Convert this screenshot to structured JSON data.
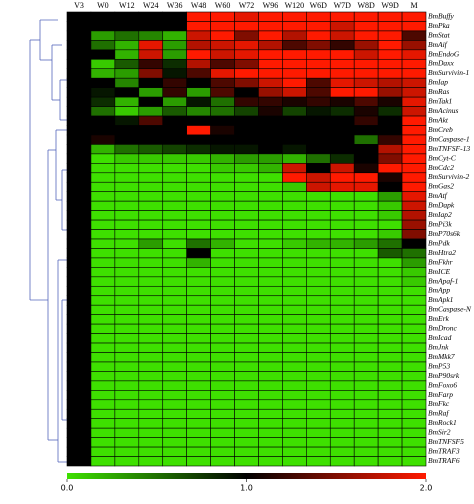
{
  "chart_data": {
    "type": "heatmap",
    "columns": [
      "V3",
      "W0",
      "W12",
      "W24",
      "W36",
      "W48",
      "W60",
      "W72",
      "W96",
      "W120",
      "W6D",
      "W7D",
      "W8D",
      "W9D",
      "M"
    ],
    "rows": [
      "BmBuffy",
      "BmPka",
      "BmStat",
      "BmAif",
      "BmEndoG",
      "BmDaxx",
      "BmSurvivin-1",
      "BmIap",
      "BmRas",
      "BmTak1",
      "BmAcinus",
      "BmAkt",
      "BmCreb",
      "BmCaspase-1",
      "BmTNFSF-13",
      "BmCyt-C",
      "BmCdc2",
      "BmSurvivin-2",
      "BmGas2",
      "BmAtf",
      "BmDapk",
      "BmIap2",
      "BmPi3k",
      "BmP70s6k",
      "BmPdk",
      "BmHtra2",
      "BmFkhr",
      "BmICE",
      "BmApaf-1",
      "BmApp",
      "BmApk1",
      "BmCaspase-N",
      "BmErk",
      "BmDronc",
      "BmIcad",
      "BmJnk",
      "BmMkk7",
      "BmP53",
      "BmP90srk",
      "BmFoxo6",
      "BmFarp",
      "BmFkc",
      "BmRaf",
      "BmRock1",
      "BmSir2",
      "BmTNFSF5",
      "BmTRAF3",
      "BmTRAF6"
    ],
    "values": [
      [
        1,
        1,
        1,
        1,
        1,
        2,
        2,
        1.9,
        2,
        2,
        2,
        2,
        2,
        2,
        2
      ],
      [
        1,
        1,
        1,
        1,
        1,
        2,
        2,
        2,
        2,
        2,
        2,
        1.8,
        2,
        2,
        2
      ],
      [
        1,
        0.3,
        0.5,
        0.4,
        0.2,
        1.8,
        2,
        1.5,
        2,
        1.7,
        2,
        1.8,
        2,
        2,
        1.3
      ],
      [
        1,
        0.5,
        0.2,
        1.9,
        0.3,
        1.7,
        1.8,
        1.9,
        1.7,
        1.3,
        1.5,
        1.2,
        1.6,
        2,
        1.6
      ],
      [
        1,
        1,
        0.2,
        1.8,
        0.3,
        2,
        1.8,
        1.9,
        2,
        2,
        2,
        2,
        1.8,
        2,
        1.9
      ],
      [
        1,
        0.1,
        0.6,
        1.2,
        0.8,
        1.7,
        1.3,
        1.5,
        2,
        2,
        2,
        2,
        2,
        2,
        2
      ],
      [
        1,
        0.2,
        0.3,
        1.5,
        0.9,
        1.3,
        1.9,
        2,
        2,
        2,
        2,
        2,
        2,
        2,
        2
      ],
      [
        1,
        1,
        0.4,
        1,
        1.2,
        1,
        1.3,
        1.5,
        1.8,
        2,
        1.3,
        1.9,
        1.8,
        1.7,
        1.8
      ],
      [
        1,
        0.9,
        1,
        0.3,
        1.2,
        0.3,
        1.3,
        1,
        1.6,
        1.8,
        1.3,
        2,
        2,
        1.6,
        1.8
      ],
      [
        1,
        0.8,
        0.2,
        1,
        0.3,
        0.9,
        0.5,
        1.2,
        1.2,
        1.1,
        1.2,
        1.1,
        1.3,
        1.1,
        1.9
      ],
      [
        1,
        0.5,
        0.1,
        0.3,
        0.6,
        0.4,
        0.5,
        0.7,
        1.1,
        0.7,
        0.9,
        0.8,
        1.1,
        0.8,
        1.8
      ],
      [
        1,
        1,
        0.9,
        1.3,
        1,
        1,
        1,
        1,
        1,
        1,
        1,
        1,
        1.2,
        1,
        2
      ],
      [
        1,
        1,
        1,
        1,
        1,
        2,
        1.1,
        1,
        1,
        1,
        1,
        1,
        1,
        1,
        2
      ],
      [
        1,
        1.1,
        1,
        1,
        1,
        1,
        1,
        1,
        1,
        1,
        1,
        1,
        0.5,
        1.2,
        2
      ],
      [
        1,
        0.2,
        0.5,
        0.6,
        0.7,
        0.8,
        0.9,
        0.9,
        1,
        0.9,
        1,
        1,
        1,
        1.7,
        2
      ],
      [
        1,
        0,
        0.1,
        0.1,
        0.1,
        0.1,
        0.2,
        0.3,
        0.3,
        0.2,
        0.5,
        0.8,
        1,
        1.5,
        2
      ],
      [
        1,
        0,
        0,
        0,
        0,
        0,
        0.1,
        0.1,
        0.2,
        1.8,
        1,
        1.8,
        1.1,
        2,
        2
      ],
      [
        1,
        0,
        0,
        0,
        0,
        0,
        0,
        0,
        0,
        2,
        1.8,
        2,
        2,
        1.1,
        2
      ],
      [
        1,
        0,
        0,
        0,
        0,
        0,
        0,
        0,
        0,
        0.1,
        1.8,
        1.9,
        1.9,
        1,
        2
      ],
      [
        1,
        0,
        0,
        0,
        0,
        0,
        0,
        0,
        0,
        0,
        0,
        0,
        0,
        0.3,
        1.9
      ],
      [
        1,
        0,
        0,
        0,
        0,
        0,
        0,
        0,
        0,
        0,
        0,
        0,
        0,
        0.1,
        1.8
      ],
      [
        1,
        0,
        0,
        0,
        0,
        0,
        0,
        0,
        0,
        0,
        0,
        0,
        0,
        0.1,
        1.7
      ],
      [
        1,
        0,
        0,
        0,
        0,
        0,
        0,
        0,
        0,
        0,
        0,
        0,
        0,
        0,
        1.6
      ],
      [
        1,
        0,
        0,
        0,
        0,
        0,
        0,
        0,
        0,
        0,
        0,
        0,
        0,
        0.1,
        1.5
      ],
      [
        1,
        0,
        0,
        0.3,
        0,
        0.5,
        0.2,
        0,
        0,
        0.1,
        0.2,
        0.2,
        0.3,
        0.5,
        1
      ],
      [
        1,
        0,
        0,
        0,
        0,
        1,
        0,
        0,
        0,
        0,
        0,
        0,
        0,
        0.6,
        0.5
      ],
      [
        1,
        0,
        0,
        0,
        0,
        0.2,
        0,
        0,
        0,
        0,
        0,
        0,
        0,
        0,
        0.3
      ],
      [
        1,
        0,
        0,
        0,
        0,
        0,
        0,
        0,
        0,
        0,
        0,
        0,
        0,
        0,
        0.1
      ],
      [
        1,
        0,
        0,
        0,
        0,
        0,
        0,
        0,
        0,
        0,
        0,
        0,
        0,
        0,
        0.1
      ],
      [
        1,
        0,
        0,
        0,
        0,
        0,
        0,
        0,
        0,
        0,
        0,
        0,
        0,
        0,
        0
      ],
      [
        1,
        0,
        0,
        0,
        0,
        0,
        0,
        0,
        0,
        0,
        0,
        0,
        0,
        0,
        0
      ],
      [
        1,
        0,
        0,
        0,
        0,
        0,
        0,
        0,
        0,
        0,
        0,
        0,
        0,
        0,
        0
      ],
      [
        1,
        0,
        0,
        0,
        0,
        0,
        0,
        0,
        0,
        0,
        0,
        0,
        0,
        0,
        0
      ],
      [
        1,
        0,
        0,
        0,
        0,
        0,
        0,
        0,
        0,
        0,
        0,
        0,
        0,
        0,
        0
      ],
      [
        1,
        0,
        0,
        0,
        0,
        0,
        0,
        0,
        0,
        0,
        0,
        0,
        0,
        0,
        0
      ],
      [
        1,
        0,
        0,
        0,
        0,
        0,
        0,
        0,
        0,
        0,
        0,
        0,
        0,
        0,
        0
      ],
      [
        1,
        0,
        0,
        0,
        0,
        0,
        0,
        0,
        0,
        0,
        0,
        0,
        0,
        0,
        0
      ],
      [
        1,
        0,
        0,
        0,
        0,
        0,
        0,
        0,
        0,
        0,
        0,
        0,
        0,
        0,
        0
      ],
      [
        1,
        0,
        0,
        0,
        0,
        0,
        0,
        0,
        0,
        0,
        0,
        0,
        0,
        0,
        0
      ],
      [
        1,
        0,
        0,
        0,
        0,
        0,
        0,
        0,
        0,
        0,
        0,
        0,
        0,
        0,
        0
      ],
      [
        1,
        0,
        0,
        0,
        0,
        0,
        0,
        0,
        0,
        0,
        0,
        0,
        0,
        0,
        0
      ],
      [
        1,
        0,
        0,
        0,
        0,
        0,
        0,
        0,
        0,
        0,
        0,
        0,
        0,
        0,
        0
      ],
      [
        1,
        0,
        0,
        0,
        0,
        0,
        0,
        0,
        0,
        0,
        0,
        0,
        0,
        0,
        0
      ],
      [
        1,
        0,
        0,
        0,
        0,
        0,
        0,
        0,
        0,
        0,
        0,
        0,
        0,
        0,
        0
      ],
      [
        1,
        0,
        0,
        0,
        0,
        0,
        0,
        0,
        0,
        0,
        0,
        0,
        0,
        0,
        0
      ],
      [
        1,
        0,
        0,
        0,
        0,
        0,
        0,
        0,
        0,
        0,
        0,
        0,
        0,
        0,
        0
      ],
      [
        1,
        0,
        0,
        0,
        0,
        0,
        0,
        0,
        0,
        0,
        0,
        0,
        0,
        0,
        0
      ],
      [
        1,
        0,
        0,
        0,
        0,
        0,
        0,
        0,
        0,
        0,
        0,
        0,
        0,
        0,
        0
      ]
    ],
    "zlim": [
      0,
      2
    ],
    "colorbar_ticks": [
      {
        "value": 0,
        "label": "0.0"
      },
      {
        "value": 1,
        "label": "1.0"
      },
      {
        "value": 2,
        "label": "2.0"
      }
    ],
    "colors": [
      "#3ee000",
      "#000000",
      "#ff1a00"
    ]
  }
}
